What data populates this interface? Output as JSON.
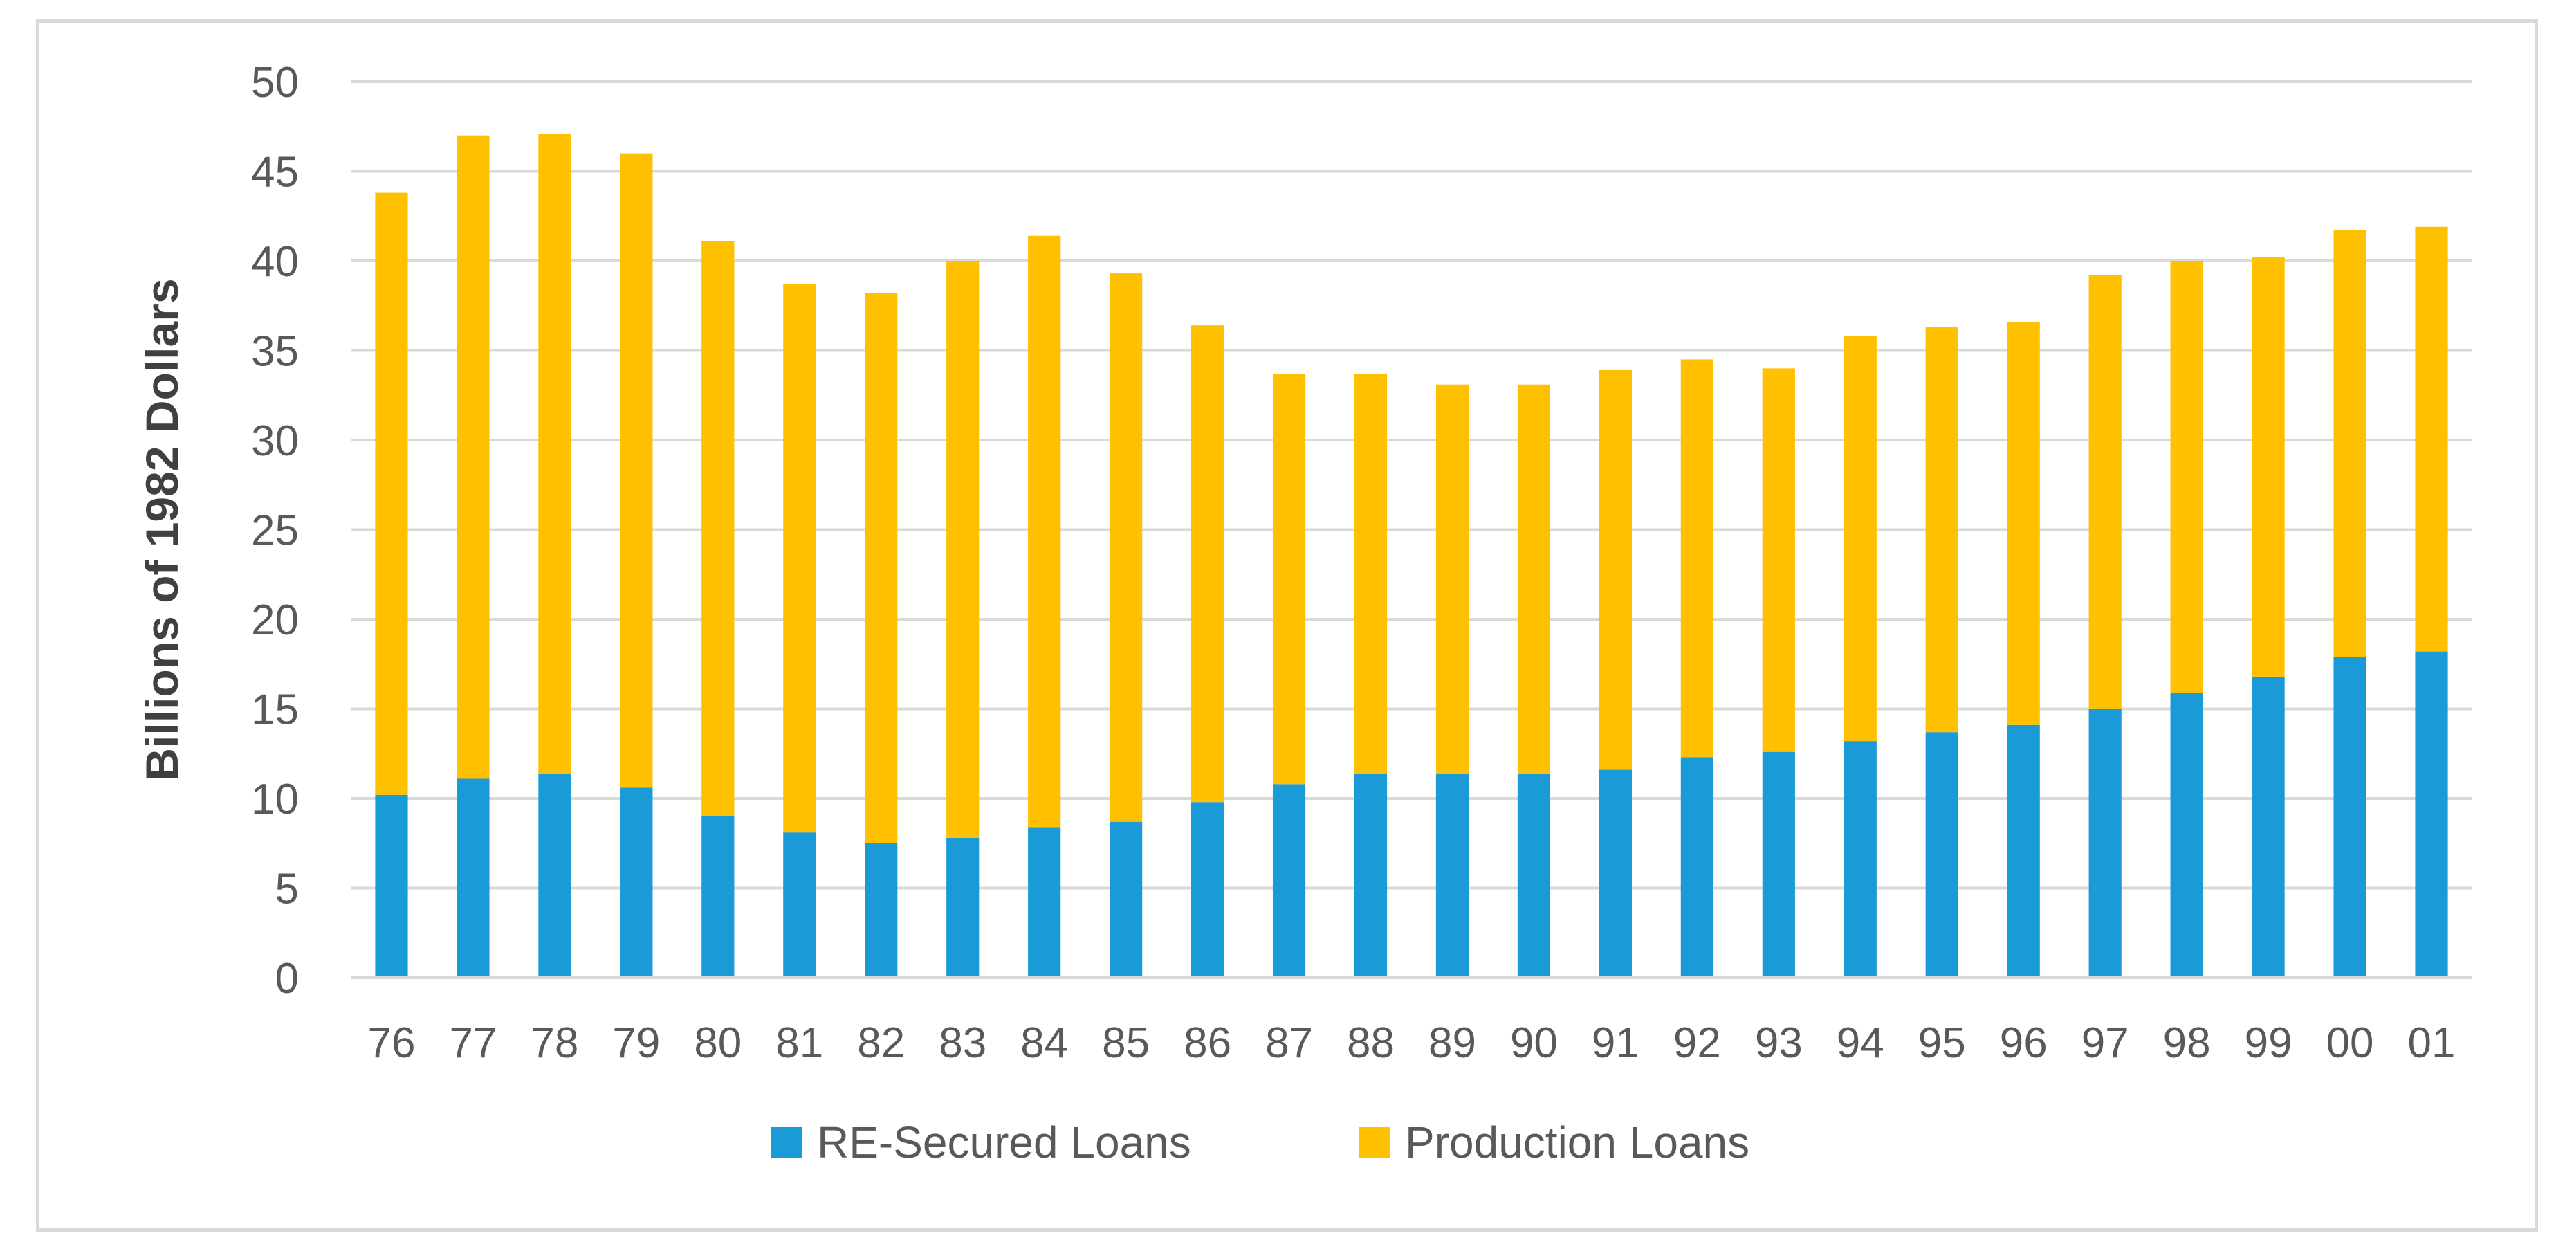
{
  "chart_data": {
    "type": "bar",
    "stacked": true,
    "title": "",
    "xlabel": "",
    "ylabel": "Billions of 1982 Dollars",
    "ylim": [
      0,
      50
    ],
    "yticks": [
      0,
      5,
      10,
      15,
      20,
      25,
      30,
      35,
      40,
      45,
      50
    ],
    "grid": true,
    "legend_position": "bottom",
    "categories": [
      "76",
      "77",
      "78",
      "79",
      "80",
      "81",
      "82",
      "83",
      "84",
      "85",
      "86",
      "87",
      "88",
      "89",
      "90",
      "91",
      "92",
      "93",
      "94",
      "95",
      "96",
      "97",
      "98",
      "99",
      "00",
      "01"
    ],
    "series": [
      {
        "name": "RE-Secured Loans",
        "color": "#1a9ad6",
        "values": [
          10.2,
          11.1,
          11.4,
          10.6,
          9.0,
          8.1,
          7.5,
          7.8,
          8.4,
          8.7,
          9.8,
          10.8,
          11.4,
          11.4,
          11.4,
          11.6,
          12.3,
          12.6,
          13.2,
          13.7,
          14.1,
          15.0,
          15.9,
          16.8,
          17.9,
          18.2
        ]
      },
      {
        "name": "Production Loans",
        "color": "#ffc000",
        "values": [
          33.6,
          35.9,
          35.7,
          35.4,
          32.1,
          30.6,
          30.7,
          32.2,
          33.0,
          30.6,
          26.6,
          22.9,
          22.3,
          21.7,
          21.7,
          22.3,
          22.2,
          21.4,
          22.6,
          22.6,
          22.5,
          24.2,
          24.1,
          23.4,
          23.8,
          23.7
        ]
      }
    ]
  }
}
